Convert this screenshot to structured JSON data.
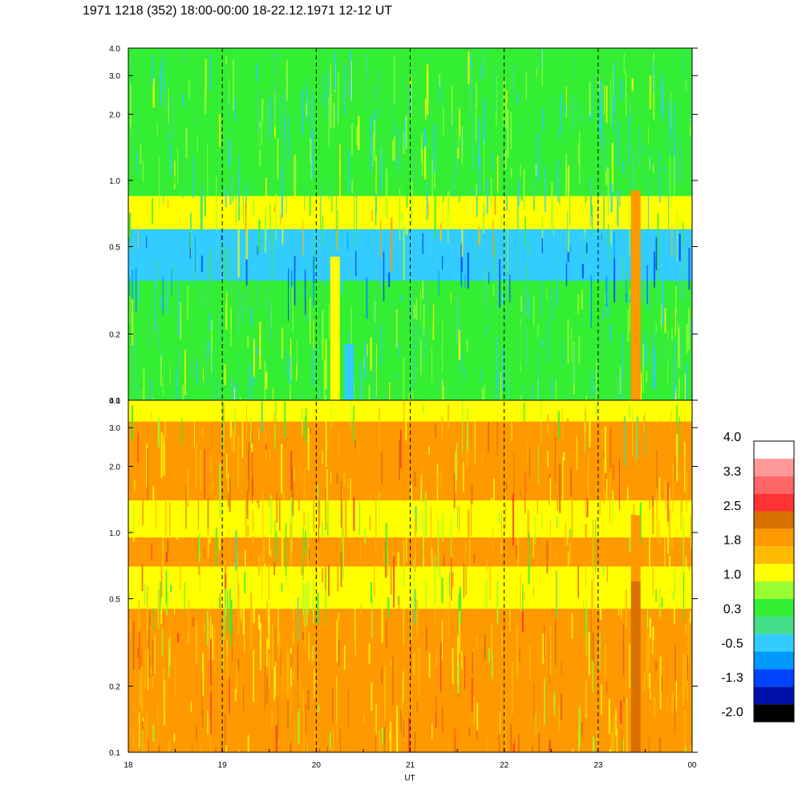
{
  "title": "1971 1218 (352) 18:00-00:00 18-22.12.1971  12-12 UT",
  "chart_data": {
    "type": "heatmap",
    "title": "1971 1218 (352) 18:00-00:00 18-22.12.1971  12-12 UT",
    "xlabel": "UT",
    "x_ticks": [
      "18",
      "19",
      "20",
      "21",
      "22",
      "23",
      "00"
    ],
    "x_dashed_gridlines_at": [
      "19",
      "20",
      "21",
      "22",
      "23"
    ],
    "y_scale": "log",
    "ylim": [
      0.1,
      4.0
    ],
    "y_ticks": [
      "0.1",
      "0.2",
      "0.5",
      "1.0",
      "2.0",
      "3.0",
      "4.0"
    ],
    "panels": [
      {
        "name": "upper",
        "background_level": 0.3,
        "bands": [
          {
            "from": 0.1,
            "to": 0.35,
            "level": 0.3
          },
          {
            "from": 0.35,
            "to": 0.6,
            "level": -0.5
          },
          {
            "from": 0.6,
            "to": 0.85,
            "level": 1.0
          },
          {
            "from": 0.85,
            "to": 4.0,
            "level": 0.3
          }
        ],
        "bursts": [
          {
            "x": 23.4,
            "ylim": [
              0.1,
              0.9
            ],
            "level": 1.8
          },
          {
            "x": 20.2,
            "ylim": [
              0.1,
              0.45
            ],
            "level": 1.0
          },
          {
            "x": 20.35,
            "ylim": [
              0.1,
              0.18
            ],
            "level": -0.5
          }
        ]
      },
      {
        "name": "lower",
        "background_level": 1.0,
        "bands": [
          {
            "from": 0.1,
            "to": 0.45,
            "level": 1.8
          },
          {
            "from": 0.45,
            "to": 0.7,
            "level": 1.0
          },
          {
            "from": 0.7,
            "to": 0.95,
            "level": 1.8
          },
          {
            "from": 0.95,
            "to": 1.4,
            "level": 1.0
          },
          {
            "from": 1.4,
            "to": 3.2,
            "level": 1.8
          },
          {
            "from": 3.2,
            "to": 4.0,
            "level": 1.0
          }
        ],
        "bursts": [
          {
            "x": 23.4,
            "ylim": [
              0.1,
              0.6
            ],
            "level": 2.5
          },
          {
            "x": 23.4,
            "ylim": [
              0.6,
              1.2
            ],
            "level": 1.8
          }
        ]
      }
    ],
    "colorbar": {
      "labels": [
        "4.0",
        "3.3",
        "2.5",
        "1.8",
        "1.0",
        "0.3",
        "-0.5",
        "-1.3",
        "-2.0"
      ],
      "colors": [
        "#ffffff",
        "#ff9999",
        "#ff6666",
        "#ff3333",
        "#d87000",
        "#ff9900",
        "#ffbb00",
        "#ffff00",
        "#99ff33",
        "#33ee33",
        "#44dd88",
        "#33ccff",
        "#0099ff",
        "#0044ff",
        "#0011aa",
        "#000000"
      ]
    }
  }
}
